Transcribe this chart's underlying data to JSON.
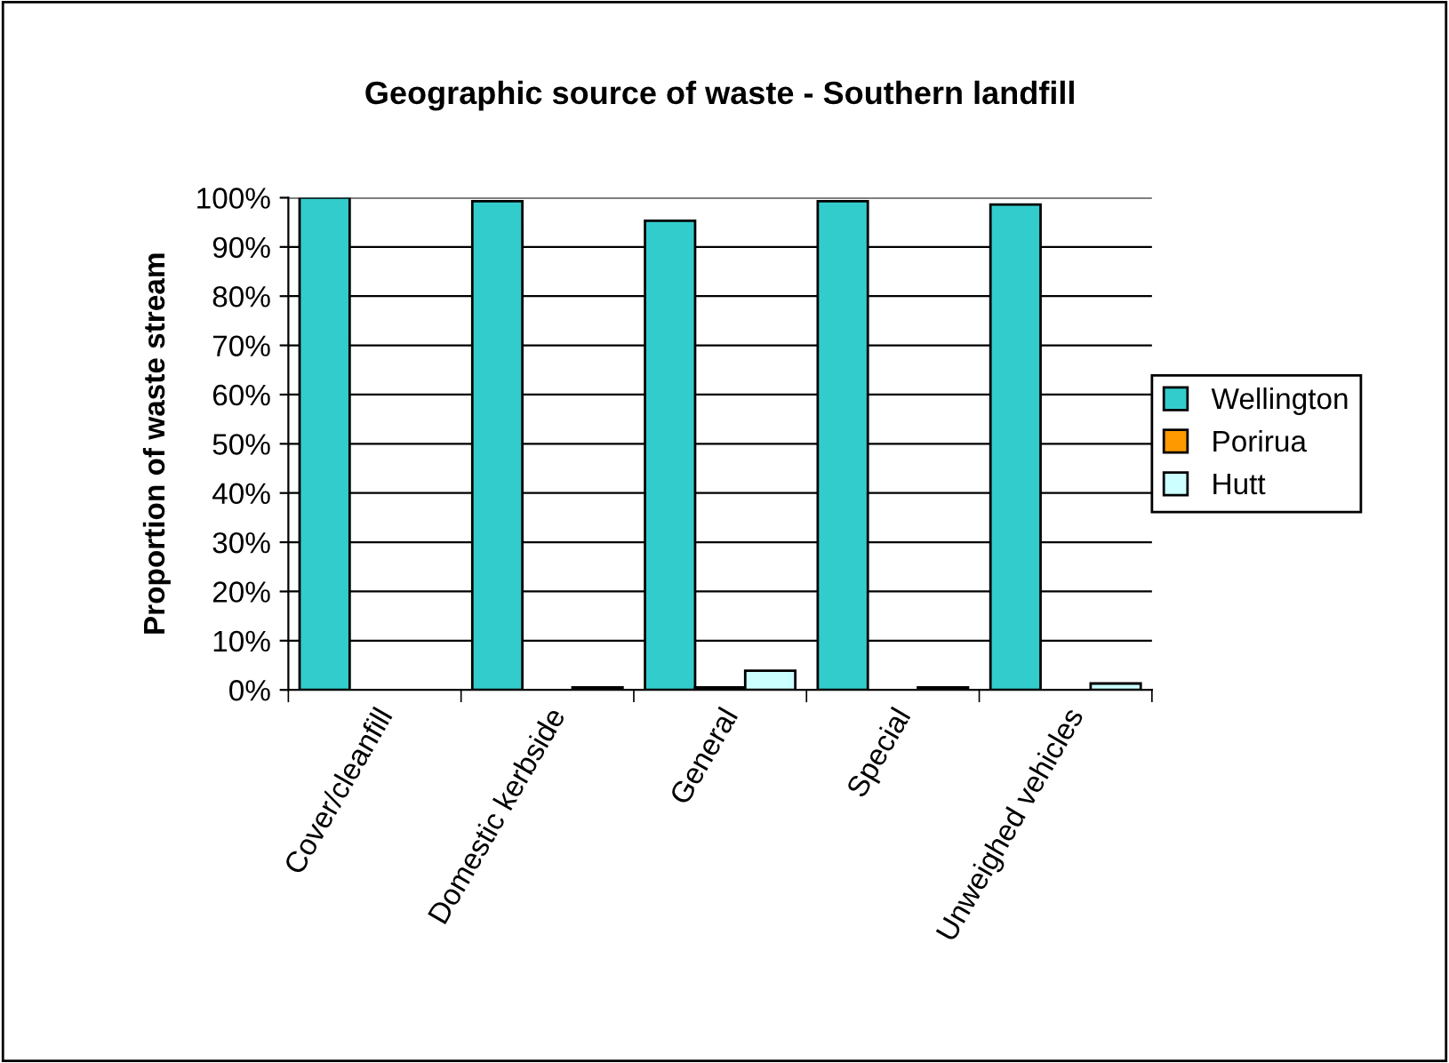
{
  "chart_data": {
    "type": "bar",
    "title": "Geographic source of waste - Southern landfill",
    "ylabel": "Proportion of waste stream",
    "categories": [
      "Cover/cleanfill",
      "Domestic kerbside",
      "General",
      "Special",
      "Unweighed vehicles"
    ],
    "series": [
      {
        "name": "Wellington",
        "color": "#33cccc",
        "values": [
          100,
          99.3,
          95.3,
          99.3,
          98.6
        ]
      },
      {
        "name": "Porirua",
        "color": "#ff9900",
        "values": [
          null,
          null,
          0.5,
          null,
          null
        ]
      },
      {
        "name": "Hutt",
        "color": "#ccffff",
        "values": [
          null,
          0.5,
          3.9,
          0.5,
          1.3
        ]
      }
    ],
    "ylim": [
      0,
      100
    ],
    "yticks": [
      {
        "value": 0,
        "label": "0%"
      },
      {
        "value": 10,
        "label": "10%"
      },
      {
        "value": 20,
        "label": "20%"
      },
      {
        "value": 30,
        "label": "30%"
      },
      {
        "value": 40,
        "label": "40%"
      },
      {
        "value": 50,
        "label": "50%"
      },
      {
        "value": 60,
        "label": "60%"
      },
      {
        "value": 70,
        "label": "70%"
      },
      {
        "value": 80,
        "label": "80%"
      },
      {
        "value": 90,
        "label": "90%"
      },
      {
        "value": 100,
        "label": "100%"
      }
    ],
    "grid": "y",
    "legend": "right"
  }
}
